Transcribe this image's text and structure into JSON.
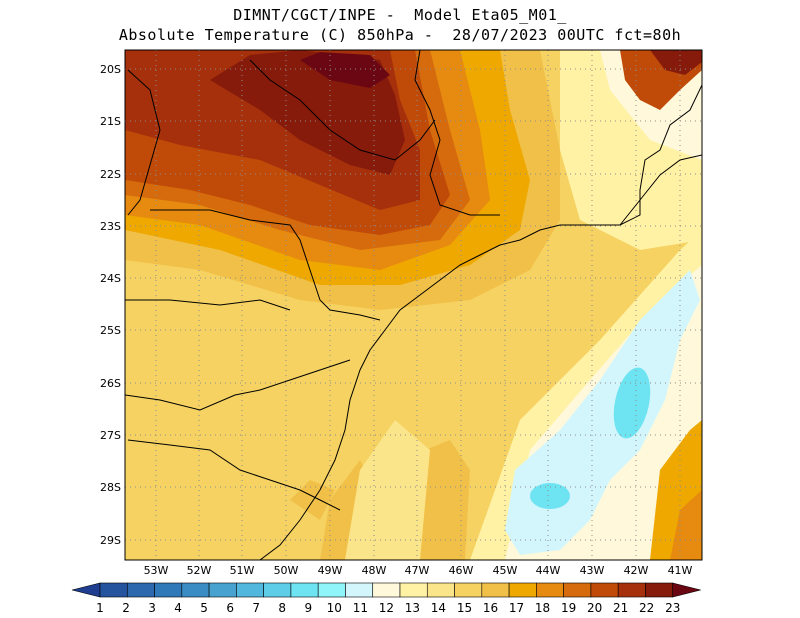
{
  "header": {
    "line1": "DIMNT/CGCT/INPE -  Model Eta05_M01_",
    "line2": "Absolute Temperature (C) 850hPa -  28/07/2023 00UTC fct=80h"
  },
  "map": {
    "lat_labels": [
      "20S",
      "21S",
      "22S",
      "23S",
      "24S",
      "25S",
      "26S",
      "27S",
      "28S",
      "29S"
    ],
    "lon_labels": [
      "53W",
      "52W",
      "51W",
      "50W",
      "49W",
      "48W",
      "47W",
      "46W",
      "45W",
      "44W",
      "43W",
      "42W",
      "41W"
    ]
  },
  "colorbar": {
    "labels": [
      "1",
      "2",
      "3",
      "4",
      "5",
      "6",
      "7",
      "8",
      "9",
      "10",
      "11",
      "12",
      "13",
      "14",
      "15",
      "16",
      "17",
      "18",
      "19",
      "20",
      "21",
      "22",
      "23"
    ],
    "colors": [
      "#1f3e8f",
      "#25549f",
      "#2b68ad",
      "#3079b8",
      "#3a8dc4",
      "#47a2d0",
      "#52b7dd",
      "#5ecde7",
      "#6ee3f2",
      "#8ff5fb",
      "#d2f6fb",
      "#fff8db",
      "#fff2a5",
      "#fbe58a",
      "#f5d262",
      "#f1c048",
      "#eea800",
      "#e68a10",
      "#d56b0c",
      "#c04a08",
      "#a5300b",
      "#861b0c",
      "#6a0713"
    ]
  }
}
